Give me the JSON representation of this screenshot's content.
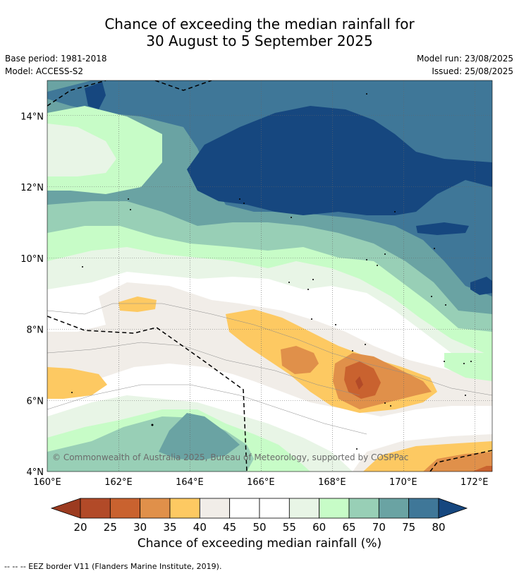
{
  "title_line1": "Chance of exceeding the median rainfall for",
  "title_line2": "30 August to 5 September 2025",
  "base_period": "Base period: 1981-2018",
  "model": "Model: ACCESS-S2",
  "model_run": "Model run: 23/08/2025",
  "issued": "Issued: 25/08/2025",
  "copyright": "© Commonwealth of Australia 2025, Bureau of Meteorology, supported by COSPPac",
  "map": {
    "lon_range": [
      160,
      172.5
    ],
    "lat_range": [
      4,
      15
    ],
    "x_ticks": [
      "160°E",
      "162°E",
      "164°E",
      "166°E",
      "168°E",
      "170°E",
      "172°E"
    ],
    "y_ticks": [
      "4°N",
      "6°N",
      "8°N",
      "10°N",
      "12°N",
      "14°N"
    ]
  },
  "colorbar": {
    "title": "Chance of exceeding median rainfall (%)",
    "ticks": [
      "20",
      "25",
      "30",
      "35",
      "40",
      "45",
      "50",
      "55",
      "60",
      "65",
      "70",
      "75",
      "80"
    ],
    "colors": [
      "#9c3b20",
      "#b24a28",
      "#c9622f",
      "#e0904a",
      "#fdc962",
      "#f1ede8",
      "#ffffff",
      "#ffffff",
      "#e8f5e6",
      "#c7fcc7",
      "#98cfb6",
      "#6aa3a3",
      "#3f7798",
      "#16477f"
    ]
  },
  "footer": "--  --  -- EEZ border V11 (Flanders Marine Institute, 2019)."
}
